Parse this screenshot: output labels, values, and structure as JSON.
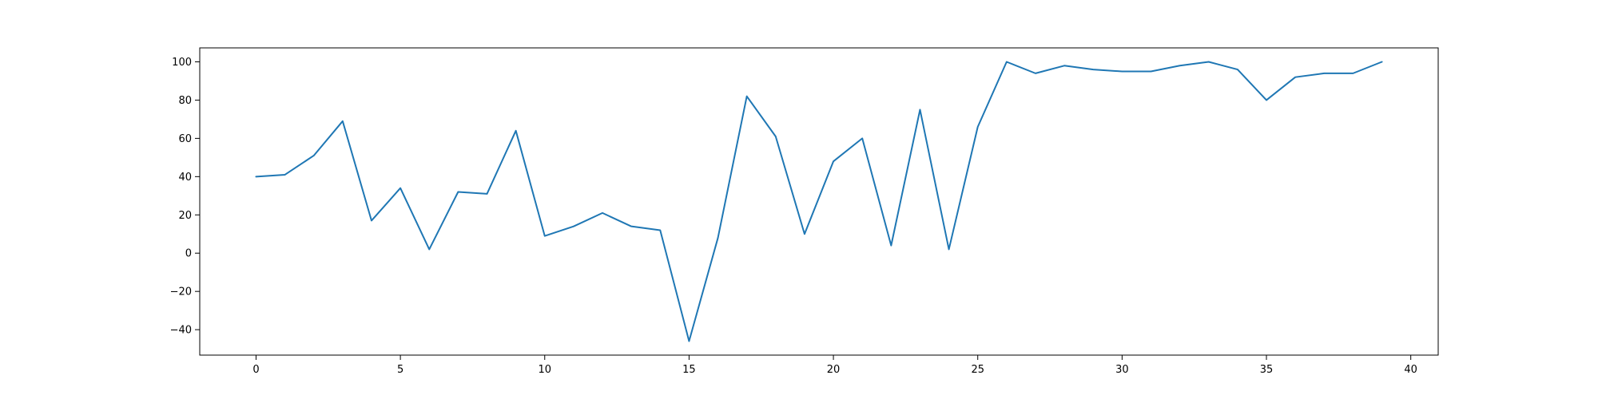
{
  "colors": {
    "series": "#1f77b4",
    "axis": "#000000",
    "background": "#ffffff"
  },
  "chart_data": {
    "type": "line",
    "title": "",
    "xlabel": "",
    "ylabel": "",
    "xlim": [
      -1.95,
      40.95
    ],
    "ylim": [
      -53.3,
      107.3
    ],
    "grid": false,
    "legend": "none",
    "xticks": [
      0,
      5,
      10,
      15,
      20,
      25,
      30,
      35,
      40
    ],
    "xtick_labels": [
      "0",
      "5",
      "10",
      "15",
      "20",
      "25",
      "30",
      "35",
      "40"
    ],
    "yticks": [
      -40,
      -20,
      0,
      20,
      40,
      60,
      80,
      100
    ],
    "ytick_labels": [
      "−40",
      "−20",
      "0",
      "20",
      "40",
      "60",
      "80",
      "100"
    ],
    "series": [
      {
        "x": [
          0,
          1,
          2,
          3,
          4,
          5,
          6,
          7,
          8,
          9,
          10,
          11,
          12,
          13,
          14,
          15,
          16,
          17,
          18,
          19,
          20,
          21,
          22,
          23,
          24,
          25,
          26,
          27,
          28,
          29,
          30,
          31,
          32,
          33,
          34,
          35,
          36,
          37,
          38,
          39
        ],
        "y": [
          40,
          41,
          51,
          69,
          17,
          34,
          2,
          32,
          31,
          64,
          9,
          14,
          21,
          14,
          12,
          -46,
          8,
          82,
          61,
          10,
          48,
          60,
          4,
          75,
          2,
          66,
          100,
          94,
          98,
          96,
          95,
          95,
          98,
          100,
          96,
          80,
          92,
          94,
          94,
          100
        ]
      }
    ]
  }
}
